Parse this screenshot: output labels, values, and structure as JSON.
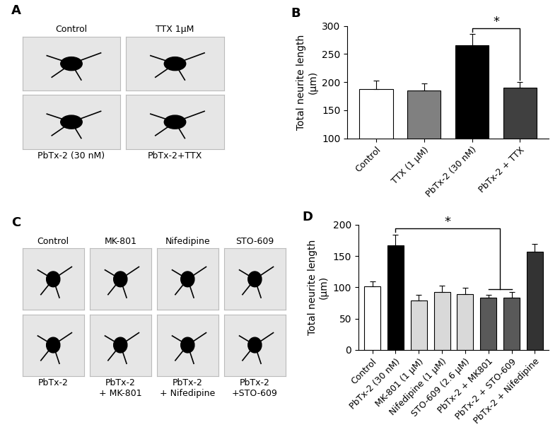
{
  "image_panels": [
    {
      "panel_label": "A",
      "rows": [
        {
          "labels": [
            "Control",
            "TTX 1μM"
          ],
          "label_position": "top"
        },
        {
          "labels": [
            "PbTx-2 (30 nM)",
            "PbTx-2+TTX"
          ],
          "label_position": "bottom"
        }
      ]
    },
    {
      "panel_label": "C",
      "rows": [
        {
          "labels": [
            "Control",
            "MK-801",
            "Nifedipine",
            "STO-609"
          ],
          "label_position": "top"
        },
        {
          "labels": [
            "PbTx-2",
            "PbTx-2\n+ MK-801",
            "PbTx-2\n+ Nifedipine",
            "PbTx-2\n+STO-609"
          ],
          "label_position": "bottom"
        }
      ]
    }
  ],
  "chart_data": [
    {
      "type": "bar",
      "panel_label": "B",
      "categories": [
        "Control",
        "TTX (1 μM)",
        "PbTx-2 (30 nM)",
        "PbTx-2 + TTX"
      ],
      "values": [
        188,
        185,
        266,
        190
      ],
      "errors": [
        15,
        13,
        20,
        10
      ],
      "colors": [
        "#ffffff",
        "#808080",
        "#000000",
        "#404040"
      ],
      "ylabel": "Total neurite length\n(μm)",
      "ylim": [
        100,
        300
      ],
      "yticks": [
        100,
        150,
        200,
        250,
        300
      ],
      "significance": [
        {
          "text": "*",
          "from": [
            2
          ],
          "to": [
            3
          ]
        }
      ]
    },
    {
      "type": "bar",
      "panel_label": "D",
      "categories": [
        "Control",
        "PbTx-2 (30 nM)",
        "MK-801 (1 μM)",
        "Nifedipine (1 μM)",
        "STO-609 (2.6 μM)",
        "PbTx-2 + MK801",
        "PbTx-2 + STO-609",
        "PbTx-2 + Nifedipine"
      ],
      "values": [
        102,
        167,
        79,
        93,
        89,
        83,
        83,
        157
      ],
      "errors": [
        7,
        17,
        9,
        10,
        10,
        5,
        10,
        12
      ],
      "colors": [
        "#ffffff",
        "#000000",
        "#d9d9d9",
        "#d9d9d9",
        "#d9d9d9",
        "#595959",
        "#595959",
        "#333333"
      ],
      "ylabel": "Total neurite length\n(μm)",
      "ylim": [
        0,
        200
      ],
      "yticks": [
        0,
        50,
        100,
        150,
        200
      ],
      "significance": [
        {
          "text": "*",
          "from": [
            1
          ],
          "to": [
            5,
            6
          ]
        }
      ]
    }
  ]
}
